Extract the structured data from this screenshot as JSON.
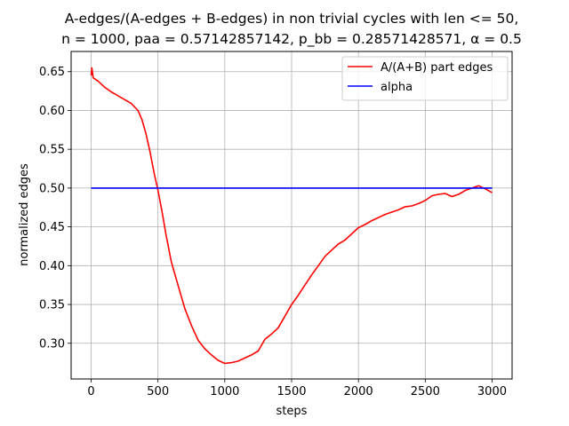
{
  "chart_data": {
    "type": "line",
    "title_lines": [
      "A-edges/(A-edges + B-edges) in non trivial cycles with len <= 50,",
      "n = 1000, paa = 0.57142857142, p_bb = 0.28571428571, α = 0.5"
    ],
    "xlabel": "steps",
    "ylabel": "normalized edges",
    "xlim": [
      -150,
      3150
    ],
    "ylim": [
      0.254,
      0.676
    ],
    "x_ticks": [
      0,
      500,
      1000,
      1500,
      2000,
      2500,
      3000
    ],
    "x_tick_labels": [
      "0",
      "500",
      "1000",
      "1500",
      "2000",
      "2500",
      "3000"
    ],
    "y_ticks": [
      0.3,
      0.35,
      0.4,
      0.45,
      0.5,
      0.55,
      0.6,
      0.65
    ],
    "y_tick_labels": [
      "0.30",
      "0.35",
      "0.40",
      "0.45",
      "0.50",
      "0.55",
      "0.60",
      "0.65"
    ],
    "grid": true,
    "legend_position": "top-right",
    "series": [
      {
        "name": "A/(A+B) part edges",
        "color": "#ff0000",
        "x": [
          0,
          5,
          15,
          50,
          100,
          150,
          200,
          250,
          300,
          350,
          380,
          410,
          440,
          470,
          500,
          530,
          560,
          600,
          650,
          700,
          750,
          800,
          850,
          900,
          950,
          1000,
          1050,
          1100,
          1150,
          1200,
          1250,
          1300,
          1350,
          1400,
          1450,
          1500,
          1550,
          1600,
          1650,
          1700,
          1750,
          1800,
          1850,
          1900,
          1950,
          2000,
          2050,
          2100,
          2150,
          2200,
          2250,
          2300,
          2350,
          2400,
          2450,
          2500,
          2550,
          2600,
          2650,
          2700,
          2750,
          2800,
          2850,
          2900,
          2950,
          3000
        ],
        "y": [
          0.645,
          0.655,
          0.642,
          0.638,
          0.63,
          0.624,
          0.619,
          0.614,
          0.609,
          0.6,
          0.588,
          0.57,
          0.547,
          0.52,
          0.497,
          0.47,
          0.44,
          0.405,
          0.375,
          0.345,
          0.323,
          0.304,
          0.293,
          0.285,
          0.278,
          0.274,
          0.275,
          0.277,
          0.281,
          0.285,
          0.29,
          0.305,
          0.312,
          0.32,
          0.335,
          0.35,
          0.362,
          0.375,
          0.388,
          0.4,
          0.412,
          0.42,
          0.428,
          0.433,
          0.441,
          0.449,
          0.453,
          0.458,
          0.462,
          0.466,
          0.469,
          0.472,
          0.476,
          0.477,
          0.48,
          0.484,
          0.49,
          0.492,
          0.493,
          0.489,
          0.492,
          0.497,
          0.5,
          0.503,
          0.499,
          0.494
        ]
      },
      {
        "name": "alpha",
        "color": "#0000ff",
        "x": [
          0,
          3000
        ],
        "y": [
          0.5,
          0.5
        ]
      }
    ]
  }
}
